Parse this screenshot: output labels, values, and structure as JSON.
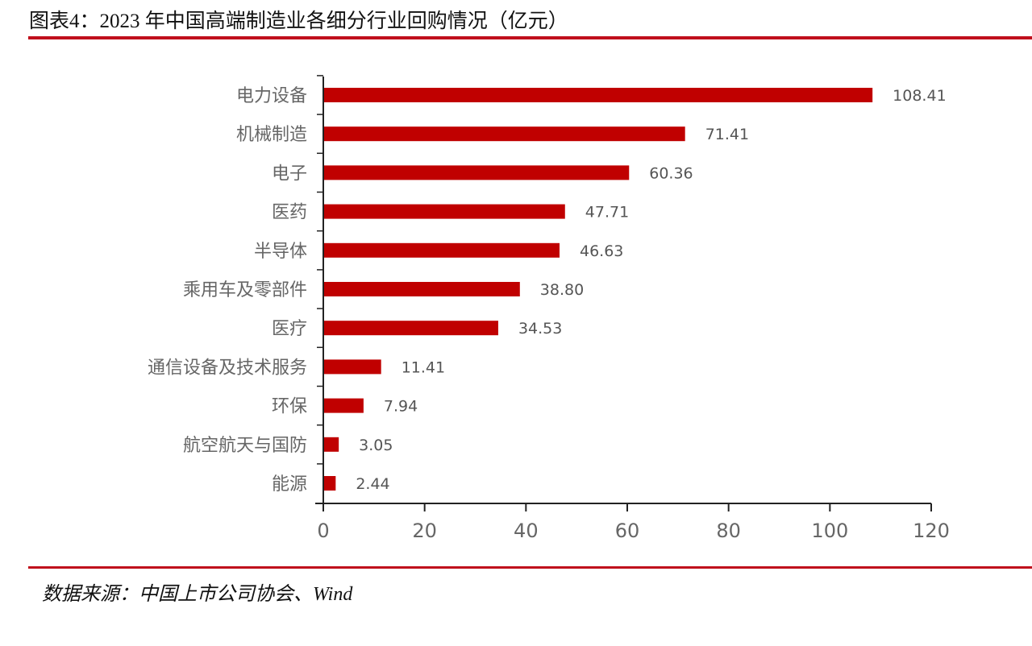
{
  "title": "图表4：2023 年中国高端制造业各细分行业回购情况（亿元）",
  "source": "数据来源：中国上市公司协会、Wind",
  "colors": {
    "bar": "#c00000",
    "rule": "#c0101c"
  },
  "chart_data": {
    "type": "bar",
    "orientation": "horizontal",
    "title": "",
    "xlabel": "",
    "ylabel": "",
    "categories": [
      "电力设备",
      "机械制造",
      "电子",
      "医药",
      "半导体",
      "乘用车及零部件",
      "医疗",
      "通信设备及技术服务",
      "环保",
      "航空航天与国防",
      "能源"
    ],
    "values": [
      108.41,
      71.41,
      60.36,
      47.71,
      46.63,
      38.8,
      34.53,
      11.41,
      7.94,
      3.05,
      2.44
    ],
    "value_labels": [
      "108.41",
      "71.41",
      "60.36",
      "47.71",
      "46.63",
      "38.80",
      "34.53",
      "11.41",
      "7.94",
      "3.05",
      "2.44"
    ],
    "xlim": [
      0,
      120
    ],
    "xticks": [
      "0",
      "20",
      "40",
      "60",
      "80",
      "100",
      "120"
    ],
    "grid": false,
    "legend": "none"
  }
}
